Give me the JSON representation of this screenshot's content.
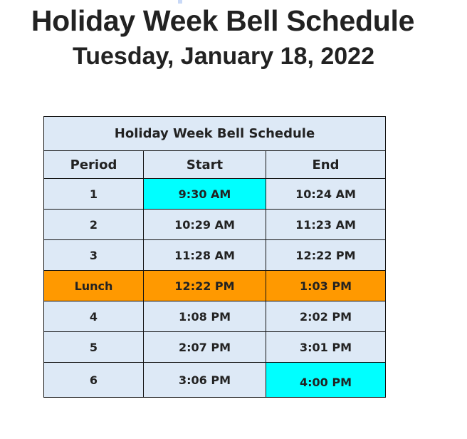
{
  "title": "Holiday Week Bell Schedule",
  "date": "Tuesday, January 18, 2022",
  "table": {
    "caption": "Holiday Week Bell Schedule",
    "columns": [
      "Period",
      "Start",
      "End"
    ],
    "rows": [
      {
        "period": "1",
        "start": "9:30 AM",
        "end": "10:24 AM",
        "start_color": "#00ffff"
      },
      {
        "period": "2",
        "start": "10:29 AM",
        "end": "11:23 AM"
      },
      {
        "period": "3",
        "start": "11:28 AM",
        "end": "12:22 PM"
      },
      {
        "period": "Lunch",
        "start": "12:22 PM",
        "end": "1:03 PM",
        "row_color": "#ff9900"
      },
      {
        "period": "4",
        "start": "1:08 PM",
        "end": "2:02 PM"
      },
      {
        "period": "5",
        "start": "2:07 PM",
        "end": "3:01 PM"
      },
      {
        "period": "6",
        "start": "3:06 PM",
        "end": "4:00 PM",
        "end_color": "#00ffff"
      }
    ]
  },
  "colors": {
    "cell_bg": "#dde9f6",
    "lunch": "#ff9900",
    "highlight": "#00ffff"
  }
}
